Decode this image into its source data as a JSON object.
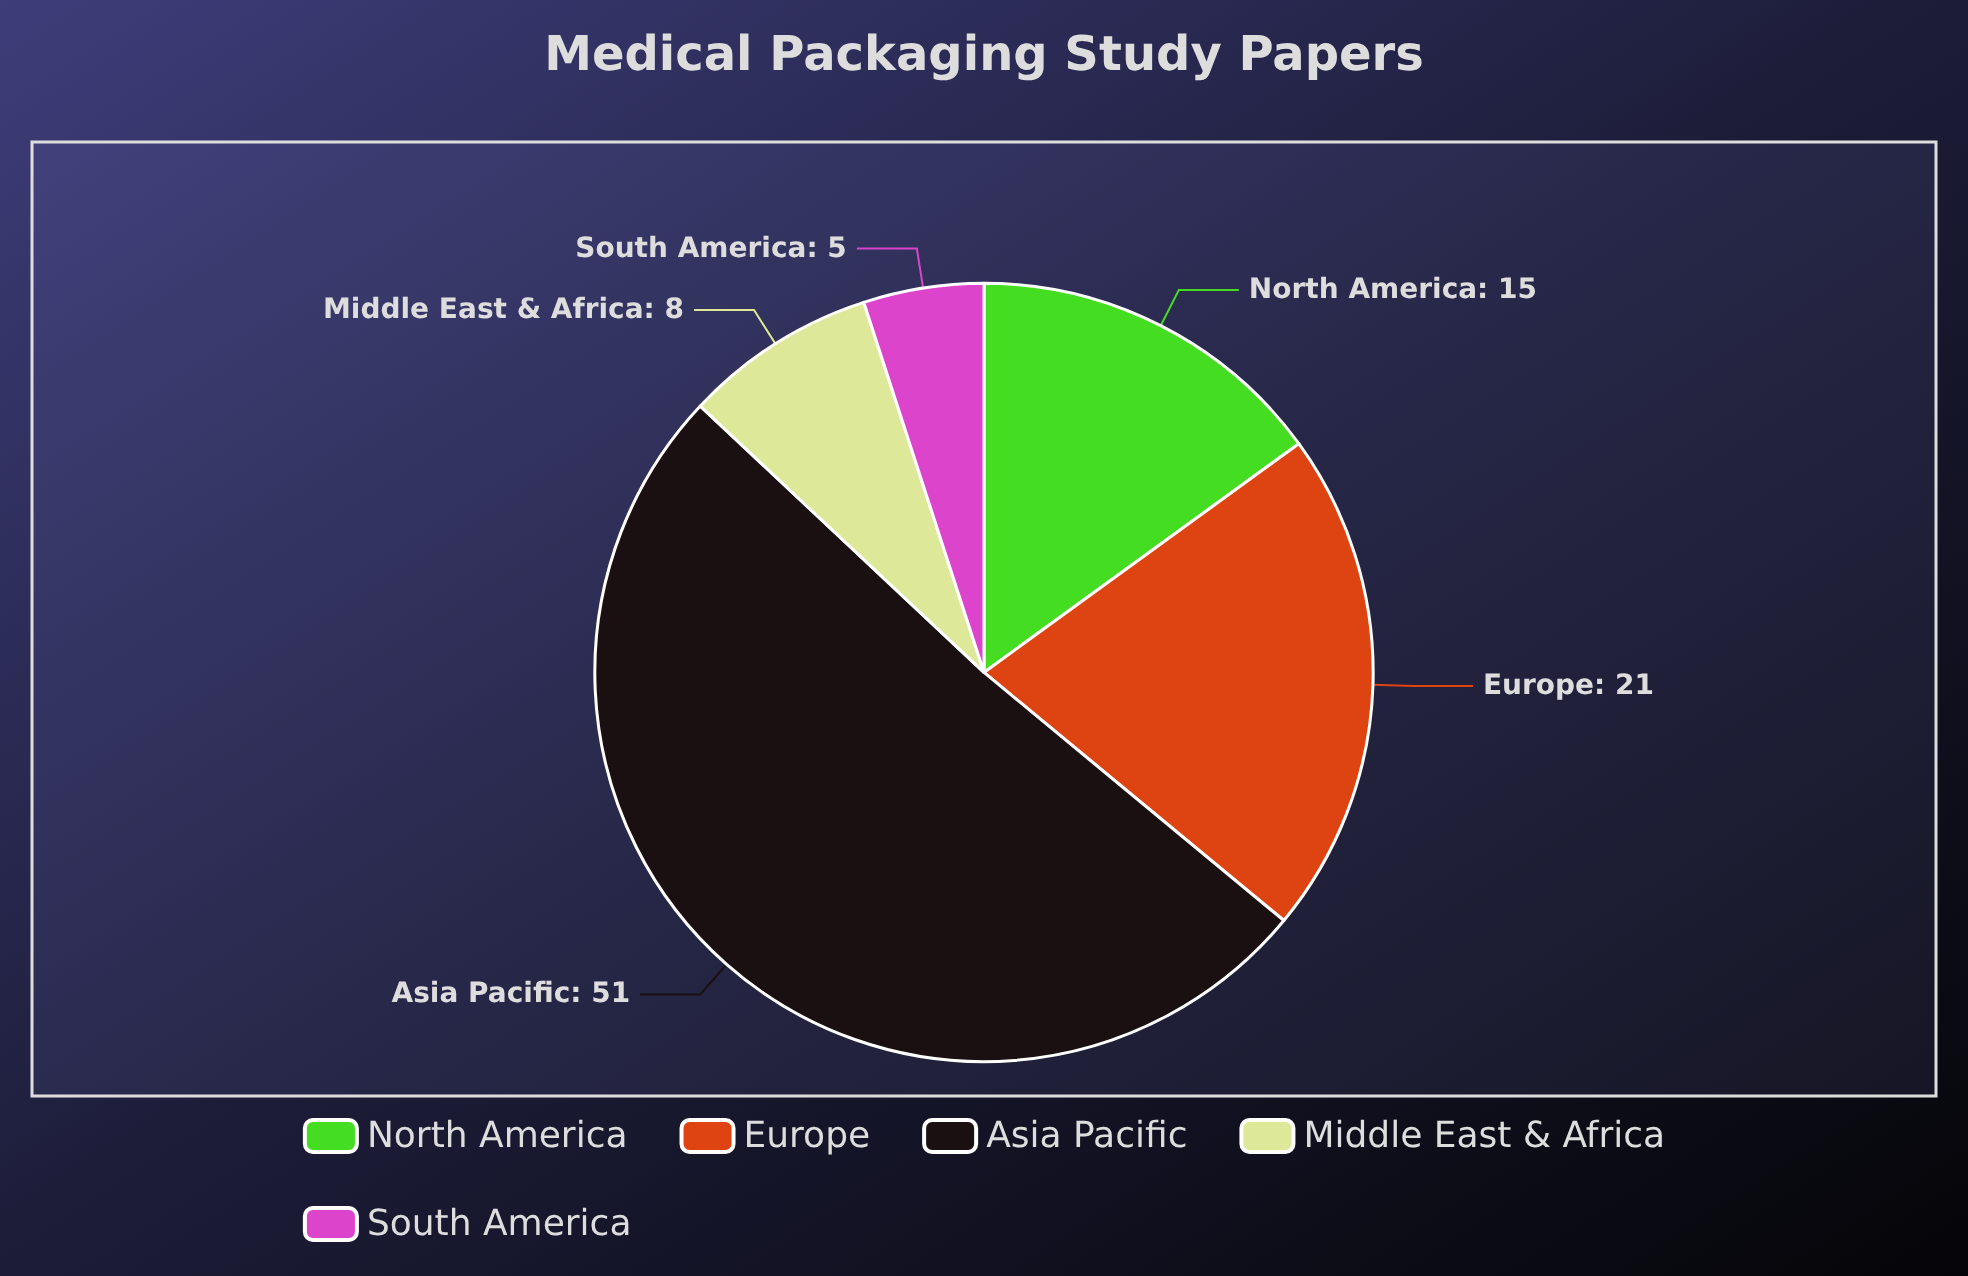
{
  "chart_data": {
    "type": "pie",
    "title": "Medical Packaging Study Papers",
    "categories": [
      "North America",
      "Europe",
      "Asia Pacific",
      "Middle East & Africa",
      "South America"
    ],
    "values": [
      15,
      21,
      51,
      8,
      5
    ],
    "colors": [
      "#44dd22",
      "#dd4411",
      "#1a1012",
      "#dde899",
      "#dd44cc"
    ],
    "value_labels": [
      "North America: 15",
      "Europe: 21",
      "Asia Pacific: 51",
      "Middle East & Africa: 8",
      "South America: 5"
    ],
    "legend": "bottom"
  }
}
